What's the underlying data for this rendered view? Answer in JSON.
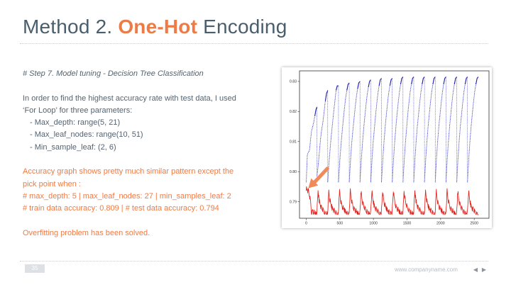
{
  "slide": {
    "title_prefix": "Method 2. ",
    "title_accent": "One-Hot",
    "title_suffix": " Encoding",
    "step_heading": "# Step 7. Model tuning - Decision Tree Classification",
    "intro_line1": "In order to find the highest accuracy rate with test data, I used",
    "intro_line2": "‘For Loop’ for three parameters:",
    "param_1": "- Max_depth: range(5, 21)",
    "param_2": "- Max_leaf_nodes: range(10, 51)",
    "param_3": "- Min_sample_leaf: (2, 6)",
    "result_line1": "Accuracy graph shows pretty much similar pattern except the",
    "result_line2": "pick point when :",
    "result_line3": "# max_depth:  5 | max_leaf_nodes:  27 | min_samples_leaf:  2",
    "result_line4": "# train data accuracy: 0.809 | # test data accuracy: 0.794",
    "conclusion": "Overfitting problem has been solved."
  },
  "footer": {
    "page_number": "35",
    "website": "www.companyname.com",
    "prev_icon": "triangle-left-icon",
    "next_icon": "triangle-right-icon"
  },
  "colors": {
    "title": "#4a5e6c",
    "accent": "#ee7b45",
    "train_series": "#1f1fb4",
    "test_series": "#e0201b",
    "arrow": "#f08a5a"
  },
  "chart_data": {
    "type": "line",
    "x_ticks": [
      "0",
      "500",
      "1000",
      "1500",
      "2000",
      "2500"
    ],
    "y_ticks": [
      "0.79",
      "0.80",
      "0.81",
      "0.82",
      "0.83"
    ],
    "xlim": [
      -100,
      2720
    ],
    "ylim": [
      0.7845,
      0.8335
    ],
    "x_max": 2560,
    "cycles": 16,
    "cycle_length": 160,
    "train_cycles": [
      [
        0.7965,
        0.8055,
        0.8065,
        0.807,
        0.8105,
        0.8135,
        0.815,
        0.8165,
        0.8185,
        0.8205,
        0.8215
      ],
      [
        0.7985,
        0.802,
        0.8065,
        0.811,
        0.814,
        0.8165,
        0.82,
        0.8235,
        0.826,
        0.827
      ],
      [
        0.7965,
        0.8025,
        0.8075,
        0.812,
        0.816,
        0.82,
        0.8235,
        0.827,
        0.8285,
        0.8285
      ],
      [
        0.7965,
        0.803,
        0.8085,
        0.813,
        0.817,
        0.821,
        0.8245,
        0.827,
        0.829,
        0.8295
      ],
      [
        0.7965,
        0.803,
        0.809,
        0.8135,
        0.8175,
        0.8215,
        0.825,
        0.8275,
        0.8295,
        0.83
      ],
      [
        0.7965,
        0.8035,
        0.809,
        0.814,
        0.818,
        0.822,
        0.8255,
        0.828,
        0.83,
        0.8305
      ],
      [
        0.7965,
        0.8035,
        0.8095,
        0.814,
        0.8185,
        0.8225,
        0.826,
        0.8285,
        0.8305,
        0.831
      ],
      [
        0.7965,
        0.8035,
        0.8095,
        0.8145,
        0.8185,
        0.8225,
        0.826,
        0.8285,
        0.8305,
        0.831
      ],
      [
        0.7965,
        0.8035,
        0.8095,
        0.8145,
        0.819,
        0.823,
        0.8265,
        0.829,
        0.831,
        0.8315
      ],
      [
        0.7965,
        0.8035,
        0.8095,
        0.8145,
        0.819,
        0.823,
        0.8265,
        0.829,
        0.831,
        0.8315
      ],
      [
        0.7965,
        0.804,
        0.81,
        0.815,
        0.819,
        0.823,
        0.8265,
        0.829,
        0.831,
        0.8315
      ],
      [
        0.7965,
        0.804,
        0.81,
        0.815,
        0.819,
        0.823,
        0.8265,
        0.829,
        0.831,
        0.8315
      ],
      [
        0.7965,
        0.804,
        0.81,
        0.815,
        0.819,
        0.823,
        0.8265,
        0.829,
        0.831,
        0.8315
      ],
      [
        0.7965,
        0.804,
        0.81,
        0.815,
        0.819,
        0.823,
        0.8265,
        0.829,
        0.831,
        0.8315
      ],
      [
        0.7965,
        0.804,
        0.81,
        0.815,
        0.819,
        0.823,
        0.8265,
        0.829,
        0.831,
        0.8315
      ],
      [
        0.7965,
        0.804,
        0.81,
        0.815,
        0.819,
        0.823,
        0.8265,
        0.829,
        0.831,
        0.8315
      ]
    ],
    "test_peak_cycle": [
      0.7945,
      0.794,
      0.7935,
      0.792,
      0.79,
      0.786,
      0.787,
      0.7865,
      0.786,
      0.786,
      0.7855
    ],
    "test_cycle": [
      0.787,
      0.7935,
      0.7905,
      0.789,
      0.788,
      0.7875,
      0.787,
      0.7865,
      0.786,
      0.786,
      0.7855
    ],
    "test_min": 0.7858,
    "annotated_point": {
      "x": 20,
      "y": 0.794
    }
  }
}
